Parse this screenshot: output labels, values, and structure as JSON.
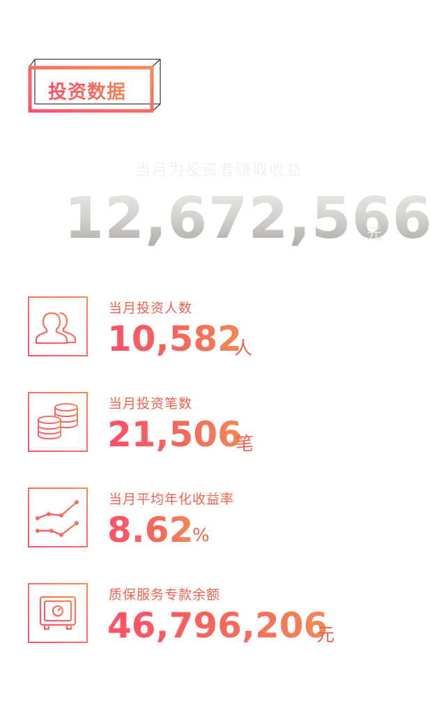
{
  "section": {
    "title": "投资数据"
  },
  "hero": {
    "label": "当月为投资者赚取收益",
    "value": "12,672,566",
    "unit": "元"
  },
  "stats": [
    {
      "icon": "users-icon",
      "label": "当月投资人数",
      "value": "10,582",
      "unit": "人"
    },
    {
      "icon": "coins-icon",
      "label": "当月投资笔数",
      "value": "21,506",
      "unit": "笔"
    },
    {
      "icon": "trend-chart-icon",
      "label": "当月平均年化收益率",
      "value": "8.62",
      "unit": "%"
    },
    {
      "icon": "safe-icon",
      "label": "质保服务专款余额",
      "value": "46,796,206",
      "unit": "元"
    }
  ],
  "colors": {
    "accent_pink": "#ff4f6a",
    "accent_orange": "#f08a57",
    "hero_gray": "#bdbab4"
  }
}
